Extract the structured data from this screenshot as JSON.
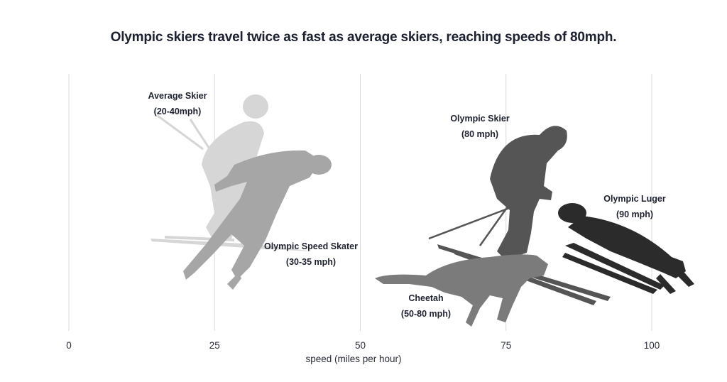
{
  "chart_data": {
    "type": "range",
    "title": "Olympic skiers travel twice as fast as average skiers, reaching speeds of 80mph.",
    "xlabel": "speed (miles per hour)",
    "xlim": [
      0,
      110
    ],
    "xticks": [
      0,
      25,
      50,
      75,
      100
    ],
    "grid": true,
    "items": [
      {
        "name": "Average Skier",
        "range_label": "(20-40mph)",
        "min": 20,
        "max": 40,
        "color": "#d6d6d6",
        "icon": "skier-silhouette-icon"
      },
      {
        "name": "Olympic Speed Skater",
        "range_label": "(30-35 mph)",
        "min": 30,
        "max": 35,
        "color": "#a6a6a6",
        "icon": "speed-skater-silhouette-icon"
      },
      {
        "name": "Olympic Skier",
        "range_label": "(80 mph)",
        "min": 80,
        "max": 80,
        "color": "#555555",
        "icon": "olympic-skier-silhouette-icon"
      },
      {
        "name": "Cheetah",
        "range_label": "(50-80 mph)",
        "min": 50,
        "max": 80,
        "color": "#7b7b7b",
        "icon": "cheetah-silhouette-icon"
      },
      {
        "name": "Olympic Luger",
        "range_label": "(90 mph)",
        "min": 90,
        "max": 90,
        "color": "#2b2b2b",
        "icon": "luge-silhouette-icon"
      }
    ]
  }
}
